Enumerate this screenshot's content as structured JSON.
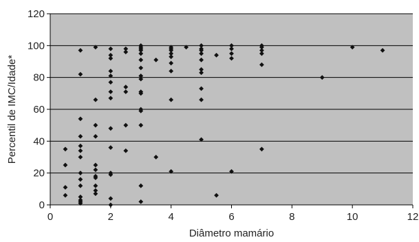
{
  "colors": {
    "plot_background": "#c0c0c0",
    "gridline": "#000000",
    "marker": "#111111",
    "axis": "#000000"
  },
  "chart_data": {
    "type": "scatter",
    "title": "",
    "xlabel": "Diâmetro mamário",
    "ylabel": "Percentil de IMC/Idade*",
    "xlim": [
      0,
      12
    ],
    "ylim": [
      0,
      120
    ],
    "xticks": [
      0,
      2,
      4,
      6,
      8,
      10,
      12
    ],
    "yticks": [
      0,
      20,
      40,
      60,
      80,
      100,
      120
    ],
    "grid": "horizontal",
    "legend": "none",
    "marker": "diamond",
    "points": [
      [
        0.5,
        35
      ],
      [
        0.5,
        25
      ],
      [
        0.5,
        11
      ],
      [
        0.5,
        6
      ],
      [
        1,
        97
      ],
      [
        1,
        82
      ],
      [
        1,
        54
      ],
      [
        1,
        43
      ],
      [
        1,
        37
      ],
      [
        1,
        34
      ],
      [
        1,
        30
      ],
      [
        1,
        20
      ],
      [
        1,
        16
      ],
      [
        1,
        12
      ],
      [
        1,
        5
      ],
      [
        1,
        3
      ],
      [
        1,
        2
      ],
      [
        1,
        1
      ],
      [
        1.5,
        99
      ],
      [
        1.5,
        66
      ],
      [
        1.5,
        50
      ],
      [
        1.5,
        43
      ],
      [
        1.5,
        25
      ],
      [
        1.5,
        22
      ],
      [
        1.5,
        18
      ],
      [
        1.5,
        17
      ],
      [
        1.5,
        12
      ],
      [
        1.5,
        9
      ],
      [
        1.5,
        7
      ],
      [
        2,
        98
      ],
      [
        2,
        94
      ],
      [
        2,
        92
      ],
      [
        2,
        84
      ],
      [
        2,
        81
      ],
      [
        2,
        77
      ],
      [
        2,
        71
      ],
      [
        2,
        67
      ],
      [
        2,
        48
      ],
      [
        2,
        36
      ],
      [
        2,
        20
      ],
      [
        2,
        19
      ],
      [
        2,
        4
      ],
      [
        2,
        0
      ],
      [
        2.5,
        98
      ],
      [
        2.5,
        96
      ],
      [
        2.5,
        74
      ],
      [
        2.5,
        71
      ],
      [
        2.5,
        50
      ],
      [
        2.5,
        34
      ],
      [
        3,
        100
      ],
      [
        3,
        99
      ],
      [
        3,
        98
      ],
      [
        3,
        97
      ],
      [
        3,
        95
      ],
      [
        3,
        91
      ],
      [
        3,
        86
      ],
      [
        3,
        81
      ],
      [
        3,
        79
      ],
      [
        3,
        71
      ],
      [
        3,
        70
      ],
      [
        3,
        60
      ],
      [
        3,
        59
      ],
      [
        3,
        50
      ],
      [
        3,
        12
      ],
      [
        3,
        2
      ],
      [
        3.5,
        91
      ],
      [
        3.5,
        30
      ],
      [
        4,
        99
      ],
      [
        4,
        98
      ],
      [
        4,
        97
      ],
      [
        4,
        95
      ],
      [
        4,
        93
      ],
      [
        4,
        89
      ],
      [
        4,
        84
      ],
      [
        4,
        66
      ],
      [
        4,
        21
      ],
      [
        4.5,
        99
      ],
      [
        5,
        100
      ],
      [
        5,
        98
      ],
      [
        5,
        97
      ],
      [
        5,
        95
      ],
      [
        5,
        91
      ],
      [
        5,
        85
      ],
      [
        5,
        83
      ],
      [
        5,
        73
      ],
      [
        5,
        66
      ],
      [
        5,
        41
      ],
      [
        5.5,
        94
      ],
      [
        5.5,
        6
      ],
      [
        6,
        100
      ],
      [
        6,
        98
      ],
      [
        6,
        95
      ],
      [
        6,
        92
      ],
      [
        6,
        21
      ],
      [
        7,
        100
      ],
      [
        7,
        99
      ],
      [
        7,
        97
      ],
      [
        7,
        95
      ],
      [
        7,
        88
      ],
      [
        7,
        35
      ],
      [
        9,
        80
      ],
      [
        10,
        99
      ],
      [
        11,
        97
      ]
    ]
  }
}
